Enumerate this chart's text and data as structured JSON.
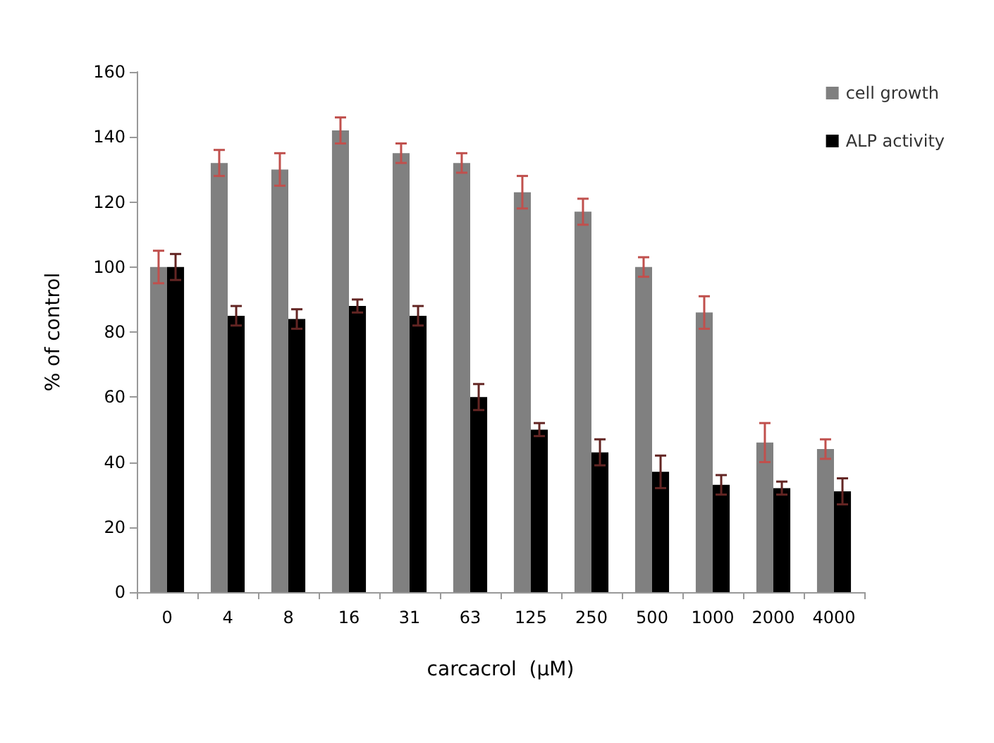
{
  "chart_data": {
    "type": "bar",
    "xlabel": "carcacrol  (μM)",
    "ylabel": "% of control",
    "categories": [
      "0",
      "4",
      "8",
      "16",
      "31",
      "63",
      "125",
      "250",
      "500",
      "1000",
      "2000",
      "4000"
    ],
    "series": [
      {
        "name": "cell growth",
        "color": "#808080",
        "values": [
          100,
          132,
          130,
          142,
          135,
          132,
          123,
          117,
          100,
          86,
          46,
          44
        ],
        "errors": [
          5,
          4,
          5,
          4,
          3,
          3,
          5,
          4,
          3,
          5,
          6,
          3
        ]
      },
      {
        "name": "ALP activity",
        "color": "#000000",
        "values": [
          100,
          85,
          84,
          88,
          85,
          60,
          50,
          43,
          37,
          33,
          32,
          31
        ],
        "errors": [
          4,
          3,
          3,
          2,
          3,
          4,
          2,
          4,
          5,
          3,
          2,
          4
        ]
      }
    ],
    "ylim": [
      0,
      160
    ],
    "yticks": [
      0,
      20,
      40,
      60,
      80,
      100,
      120,
      140,
      160
    ],
    "grid": false,
    "legend": "top right"
  }
}
